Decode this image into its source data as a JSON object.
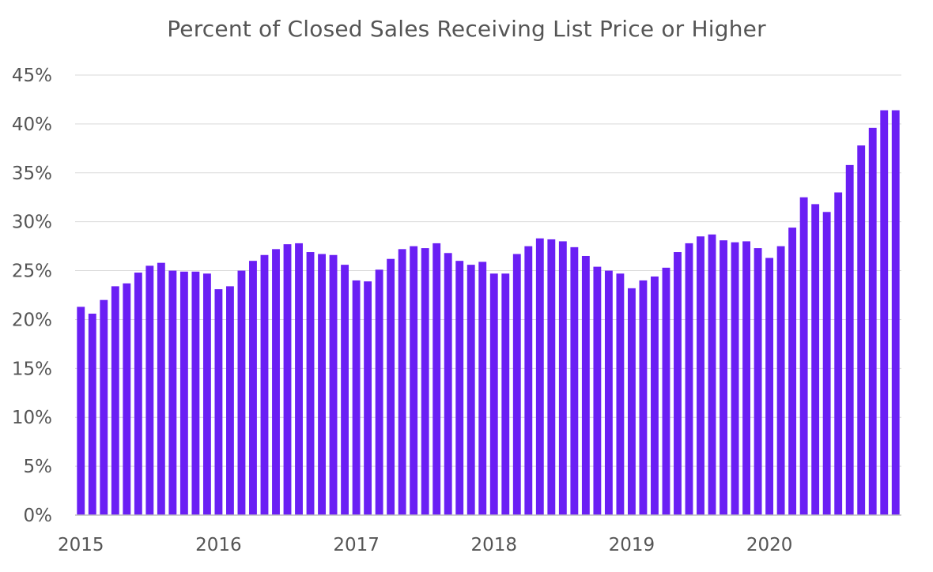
{
  "chart_data": {
    "type": "bar",
    "title": "Percent of Closed Sales Receiving List Price or Higher",
    "xlabel": "",
    "ylabel": "",
    "ylim": [
      0,
      45
    ],
    "y_ticks": [
      "0%",
      "5%",
      "10%",
      "15%",
      "20%",
      "25%",
      "30%",
      "35%",
      "40%",
      "45%"
    ],
    "x_ticks": [
      "2015",
      "2016",
      "2017",
      "2018",
      "2019",
      "2020"
    ],
    "grid": true,
    "legend": "none",
    "bar_color": "#6a1ff4",
    "series": [
      {
        "name": "Percent of Closed Sales Receiving List Price or Higher",
        "values": [
          21.3,
          20.6,
          22.0,
          23.4,
          23.7,
          24.8,
          25.5,
          25.8,
          25.0,
          24.9,
          24.9,
          24.7,
          23.1,
          23.4,
          25.0,
          26.0,
          26.6,
          27.2,
          27.7,
          27.8,
          26.9,
          26.7,
          26.6,
          25.6,
          24.0,
          23.9,
          25.1,
          26.2,
          27.2,
          27.5,
          27.3,
          27.8,
          26.8,
          26.0,
          25.6,
          25.9,
          24.7,
          24.7,
          26.7,
          27.5,
          28.3,
          28.2,
          28.0,
          27.4,
          26.5,
          25.4,
          25.0,
          24.7,
          23.2,
          24.0,
          24.4,
          25.3,
          26.9,
          27.8,
          28.5,
          28.7,
          28.1,
          27.9,
          28.0,
          27.3,
          26.3,
          27.5,
          29.4,
          32.5,
          31.8,
          31.0,
          33.0,
          35.8,
          37.8,
          39.6,
          41.4,
          41.4
        ]
      }
    ]
  }
}
